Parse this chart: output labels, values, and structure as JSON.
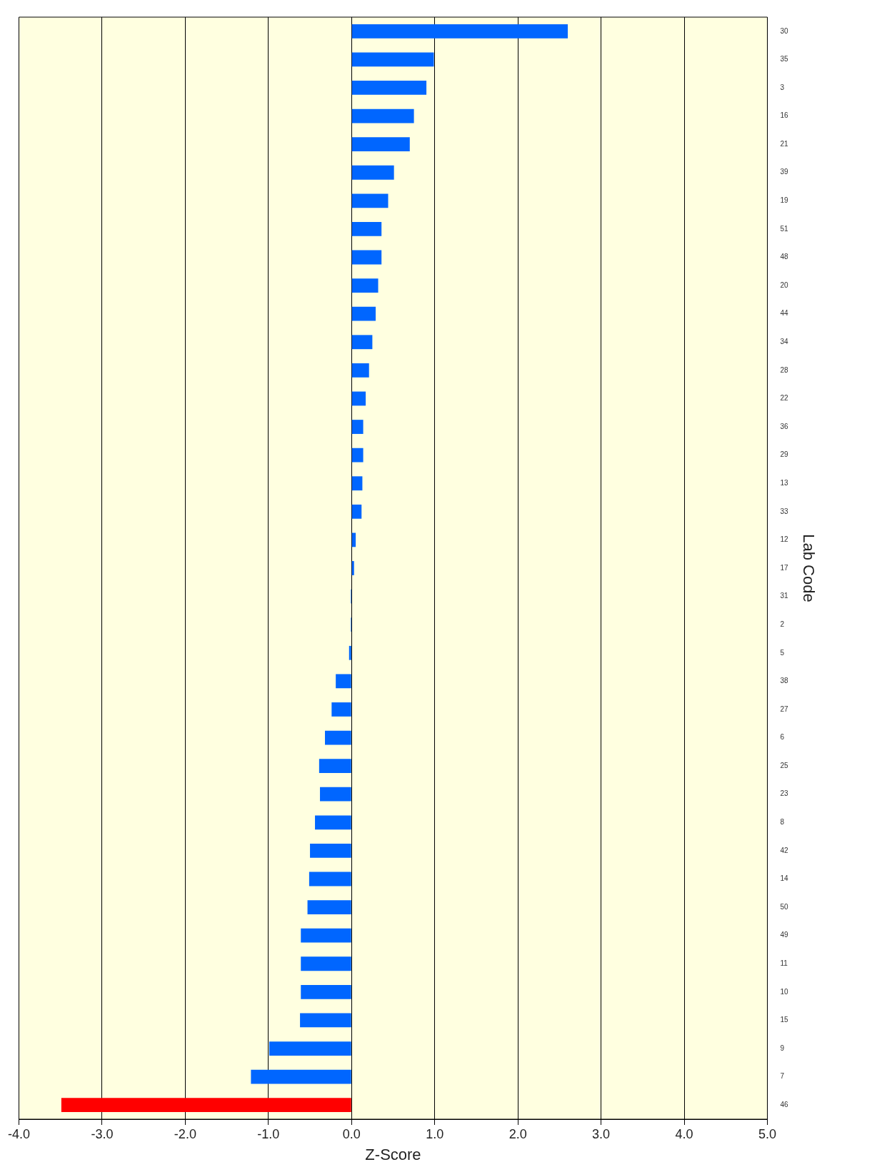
{
  "chart_data": {
    "type": "bar",
    "orientation": "horizontal",
    "xlabel": "Z-Score",
    "ylabel": "Lab Code",
    "categories": [
      "30",
      "35",
      "3",
      "16",
      "21",
      "39",
      "19",
      "51",
      "48",
      "20",
      "44",
      "34",
      "28",
      "22",
      "36",
      "29",
      "13",
      "33",
      "12",
      "17",
      "31",
      "2",
      "5",
      "38",
      "27",
      "6",
      "25",
      "23",
      "8",
      "42",
      "14",
      "50",
      "49",
      "11",
      "10",
      "15",
      "9",
      "7",
      "46"
    ],
    "values": [
      2.6,
      0.99,
      0.9,
      0.75,
      0.7,
      0.51,
      0.44,
      0.36,
      0.36,
      0.32,
      0.29,
      0.25,
      0.21,
      0.17,
      0.14,
      0.14,
      0.13,
      0.12,
      0.05,
      0.03,
      -0.01,
      -0.01,
      -0.03,
      -0.19,
      -0.24,
      -0.32,
      -0.39,
      -0.38,
      -0.44,
      -0.5,
      -0.51,
      -0.53,
      -0.61,
      -0.61,
      -0.61,
      -0.62,
      -0.99,
      -1.21,
      -3.49
    ],
    "colors": [
      "#0066ff",
      "#0066ff",
      "#0066ff",
      "#0066ff",
      "#0066ff",
      "#0066ff",
      "#0066ff",
      "#0066ff",
      "#0066ff",
      "#0066ff",
      "#0066ff",
      "#0066ff",
      "#0066ff",
      "#0066ff",
      "#0066ff",
      "#0066ff",
      "#0066ff",
      "#0066ff",
      "#0066ff",
      "#0066ff",
      "#0066ff",
      "#0066ff",
      "#0066ff",
      "#0066ff",
      "#0066ff",
      "#0066ff",
      "#0066ff",
      "#0066ff",
      "#0066ff",
      "#0066ff",
      "#0066ff",
      "#0066ff",
      "#0066ff",
      "#0066ff",
      "#0066ff",
      "#0066ff",
      "#0066ff",
      "#0066ff",
      "#ff0000"
    ],
    "xlim": [
      -4,
      5
    ],
    "xticks": [
      {
        "value": -4,
        "label": "-4.0"
      },
      {
        "value": -3,
        "label": "-3.0"
      },
      {
        "value": -2,
        "label": "-2.0"
      },
      {
        "value": -1,
        "label": "-1.0"
      },
      {
        "value": 0,
        "label": "0.0"
      },
      {
        "value": 1,
        "label": "1.0"
      },
      {
        "value": 2,
        "label": "2.0"
      },
      {
        "value": 3,
        "label": "3.0"
      },
      {
        "value": 4,
        "label": "4.0"
      },
      {
        "value": 5,
        "label": "5.0"
      }
    ],
    "grid": "x",
    "legend": false
  }
}
